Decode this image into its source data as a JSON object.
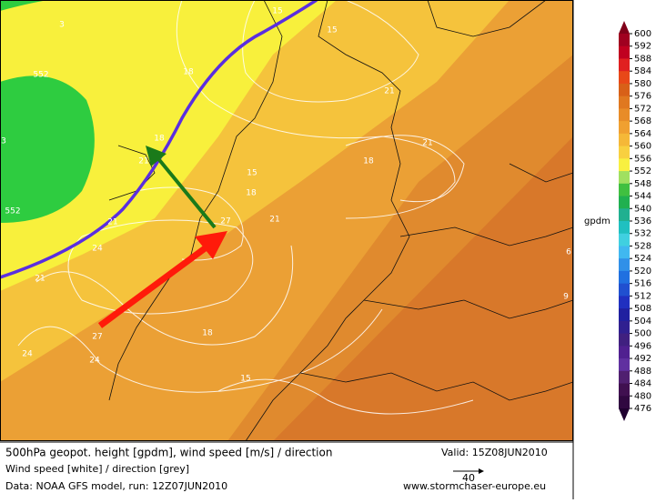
{
  "map": {
    "contour_labels": [
      15,
      15,
      3,
      552,
      18,
      21,
      18,
      21,
      21,
      18,
      15,
      18,
      21,
      27,
      552,
      21,
      24,
      21,
      6,
      9,
      27,
      18,
      24,
      24,
      15,
      3
    ]
  },
  "colorbar": {
    "unit": "gpdm",
    "levels": [
      600,
      592,
      588,
      584,
      580,
      576,
      572,
      568,
      564,
      560,
      556,
      552,
      548,
      544,
      540,
      536,
      532,
      528,
      524,
      520,
      516,
      512,
      508,
      504,
      500,
      496,
      492,
      488,
      484,
      480,
      476
    ],
    "colors": [
      "#80001a",
      "#a00020",
      "#c00020",
      "#e02020",
      "#e84818",
      "#d86018",
      "#e07820",
      "#e88c28",
      "#f0a030",
      "#f5b838",
      "#f8d040",
      "#f8f040",
      "#a0e060",
      "#40c040",
      "#20b050",
      "#20b090",
      "#20c0c0",
      "#40d0e0",
      "#40b8f0",
      "#3090e8",
      "#2070e0",
      "#2050d0",
      "#2030c0",
      "#2020a0",
      "#302090",
      "#402080",
      "#502090",
      "#6030a0",
      "#502070",
      "#401050",
      "#300840",
      "#200030"
    ]
  },
  "footer": {
    "title": "500hPa geopot. height [gpdm], wind speed [m/s] / direction",
    "valid": "Valid: 15Z08JUN2010",
    "line2": "Wind speed [white] / direction [grey]",
    "line3": "Data: NOAA GFS model, run: 12Z07JUN2010",
    "site": "www.stormchaser-europe.eu",
    "scale": "40"
  }
}
